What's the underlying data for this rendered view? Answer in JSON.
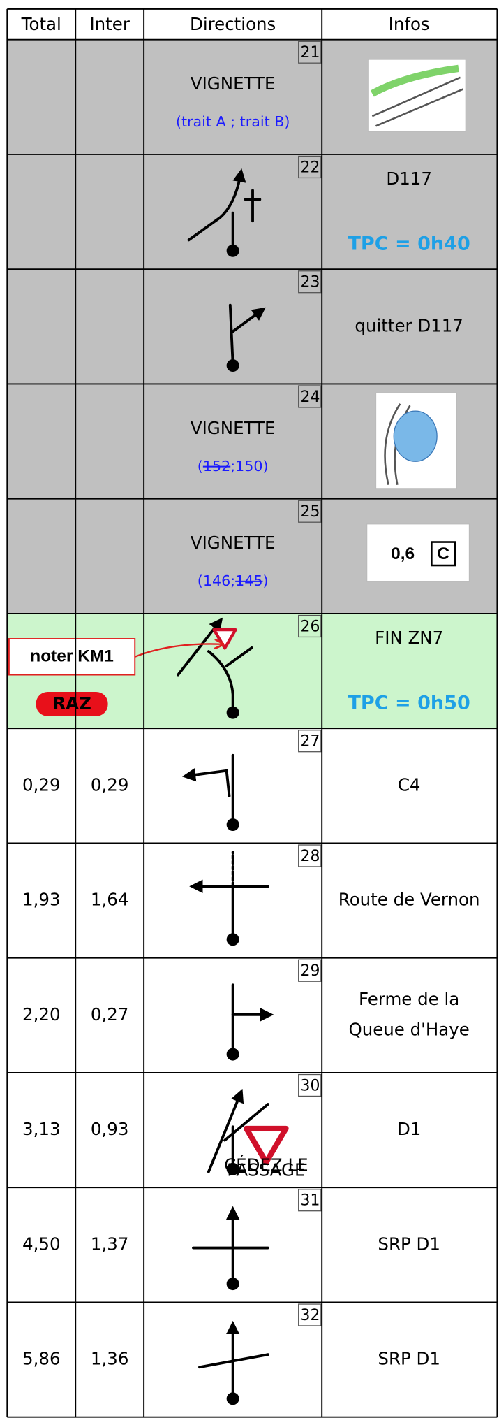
{
  "header": [
    "Total",
    "Inter",
    "Directions",
    "Infos"
  ],
  "rows": [
    {
      "number": "21",
      "directions": [
        "VIGNETTE"
      ],
      "note": [
        "(trait A ; trait B)"
      ]
    },
    {
      "number": "22",
      "infos": [
        "D117"
      ],
      "tpc": "TPC = 0h40"
    },
    {
      "number": "23",
      "infos": [
        "quitter D117"
      ]
    },
    {
      "number": "24",
      "directions": [
        "VIGNETTE"
      ],
      "note": [
        "(",
        "152",
        ";150)"
      ]
    },
    {
      "number": "25",
      "directions": [
        "VIGNETTE"
      ],
      "note": [
        "(146;",
        "145",
        ")"
      ],
      "image_text": [
        "0,6",
        "C"
      ]
    },
    {
      "number": "26",
      "infos": [
        "FIN ZN7"
      ],
      "tpc": "TPC = 0h50",
      "labels": [
        "noter KM1",
        "RAZ"
      ]
    },
    {
      "total": "0,29",
      "inter": "0,29",
      "number": "27",
      "infos": [
        "C4"
      ]
    },
    {
      "total": "1,93",
      "inter": "1,64",
      "number": "28",
      "infos": [
        "Route de Vernon"
      ]
    },
    {
      "total": "2,20",
      "inter": "0,27",
      "number": "29",
      "infos": [
        "Ferme de la",
        "Queue d'Haye"
      ]
    },
    {
      "total": "3,13",
      "inter": "0,93",
      "number": "30",
      "infos": [
        "D1"
      ],
      "sign_text": [
        "CÉDEZ LE",
        "PASSAGE"
      ]
    },
    {
      "total": "4,50",
      "inter": "1,37",
      "number": "31",
      "infos": [
        "SRP D1"
      ]
    },
    {
      "total": "5,86",
      "inter": "1,36",
      "number": "32",
      "infos": [
        "SRP D1"
      ]
    }
  ]
}
